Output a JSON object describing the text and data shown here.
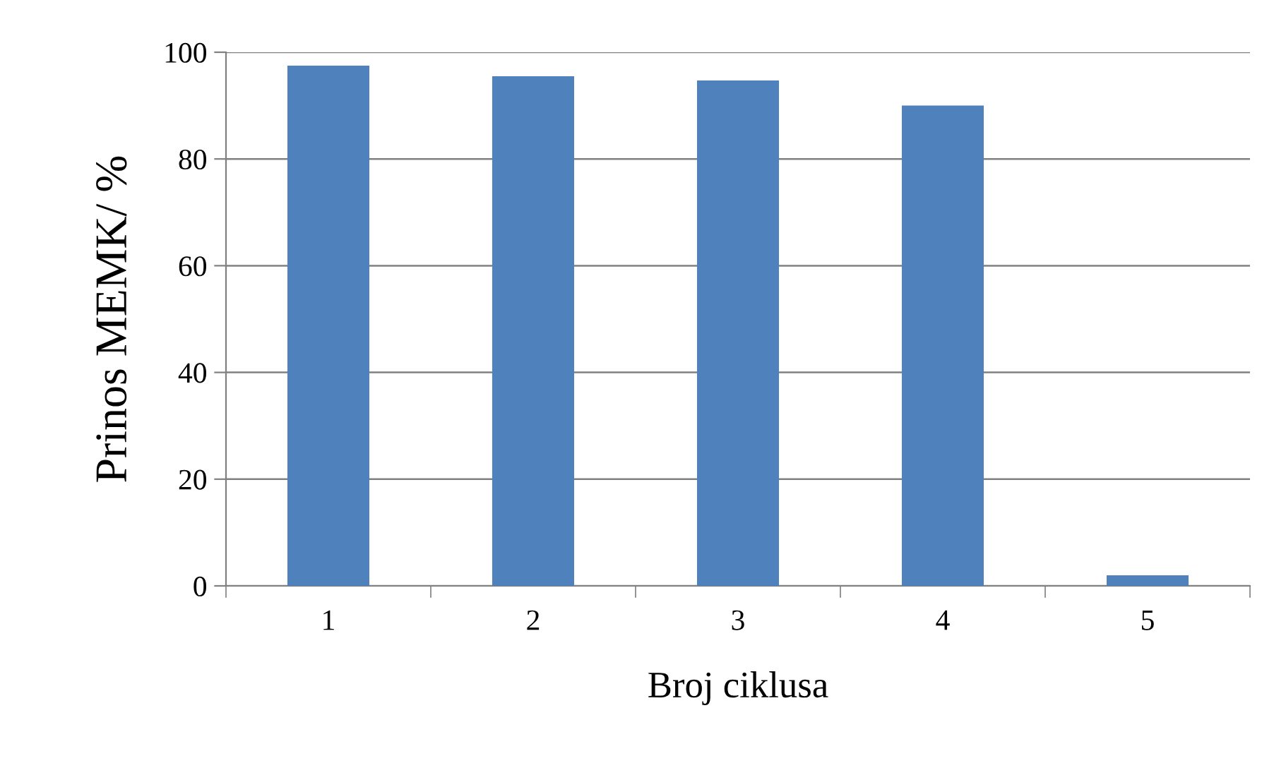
{
  "chart_data": {
    "type": "bar",
    "xlabel": "Broj ciklusa",
    "ylabel": "Prinos MEMK/ %",
    "categories": [
      "1",
      "2",
      "3",
      "4",
      "5"
    ],
    "values": [
      97.5,
      95.5,
      94.7,
      90,
      2
    ],
    "color": "#4f81bd",
    "ylim": [
      0,
      100
    ],
    "yticks": [
      0,
      20,
      40,
      60,
      80,
      100
    ],
    "grid": "y",
    "legend": false
  }
}
